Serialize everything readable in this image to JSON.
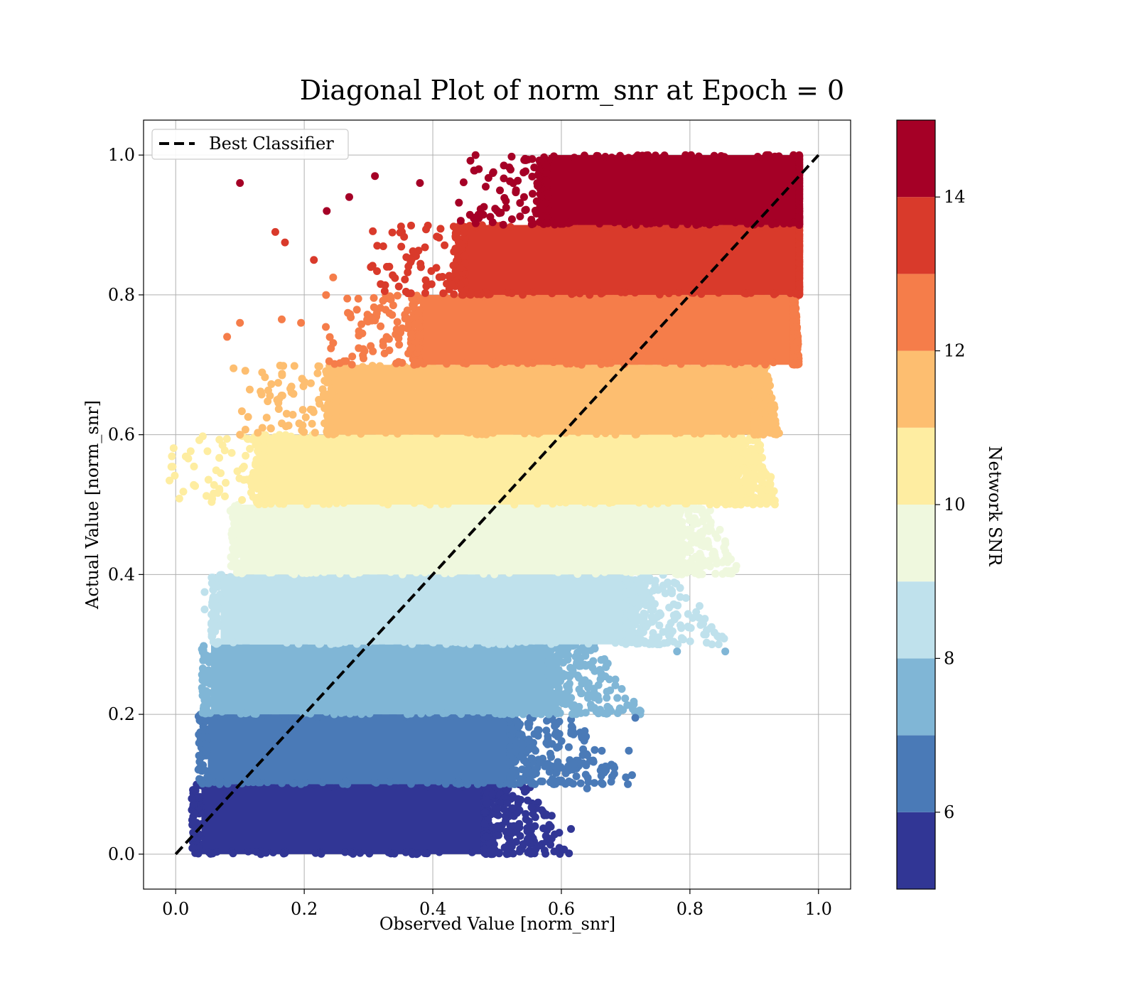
{
  "chart_data": {
    "type": "scatter",
    "title": "Diagonal Plot of norm_snr at Epoch = 0",
    "xlabel": "Observed Value [norm_snr]",
    "ylabel": "Actual Value [norm_snr]",
    "xlim": [
      -0.05,
      1.05
    ],
    "ylim": [
      -0.05,
      1.05
    ],
    "xticks": [
      "0.0",
      "0.2",
      "0.4",
      "0.6",
      "0.8",
      "1.0"
    ],
    "yticks": [
      "0.0",
      "0.2",
      "0.4",
      "0.6",
      "0.8",
      "1.0"
    ],
    "grid": true,
    "legend": {
      "placement": "top-left",
      "entries": [
        "Best Classifier"
      ]
    },
    "reference_line": {
      "name": "Best Classifier",
      "style": "dashed",
      "color": "#000000",
      "x": [
        0.0,
        1.0
      ],
      "y": [
        0.0,
        1.0
      ]
    },
    "colorbar": {
      "label": "Network SNR",
      "range": [
        5,
        15
      ],
      "ticks": [
        "6",
        "8",
        "10",
        "12",
        "14"
      ],
      "bins": [
        {
          "from": 5,
          "to": 6,
          "color": "#313695"
        },
        {
          "from": 6,
          "to": 7,
          "color": "#4a7ab7"
        },
        {
          "from": 7,
          "to": 8,
          "color": "#80b6d6"
        },
        {
          "from": 8,
          "to": 9,
          "color": "#bfe1ec"
        },
        {
          "from": 9,
          "to": 10,
          "color": "#eff8de"
        },
        {
          "from": 10,
          "to": 11,
          "color": "#feeda1"
        },
        {
          "from": 11,
          "to": 12,
          "color": "#fdbe70"
        },
        {
          "from": 12,
          "to": 13,
          "color": "#f57d4a"
        },
        {
          "from": 13,
          "to": 14,
          "color": "#d93a2b"
        },
        {
          "from": 14,
          "to": 15,
          "color": "#a50026"
        }
      ]
    },
    "bands": [
      {
        "y": [
          0.0,
          0.1
        ],
        "x": [
          0.04,
          0.48
        ],
        "tail_x": 0.62,
        "color": "#313695"
      },
      {
        "y": [
          0.1,
          0.2
        ],
        "x": [
          0.05,
          0.52
        ],
        "tail_x": 0.71,
        "color": "#4a7ab7"
      },
      {
        "y": [
          0.2,
          0.3
        ],
        "x": [
          0.055,
          0.58
        ],
        "tail_x": 0.73,
        "color": "#80b6d6"
      },
      {
        "y": [
          0.3,
          0.4
        ],
        "x": [
          0.07,
          0.7
        ],
        "tail_x": 0.86,
        "color": "#bfe1ec"
      },
      {
        "y": [
          0.4,
          0.5
        ],
        "x": [
          0.1,
          0.78
        ],
        "tail_x": 0.88,
        "color": "#eff8de"
      },
      {
        "y": [
          0.5,
          0.6
        ],
        "x": [
          0.14,
          0.87
        ],
        "tail_x": 0.94,
        "color": "#feeda1"
      },
      {
        "y": [
          0.6,
          0.7
        ],
        "x": [
          0.25,
          0.9
        ],
        "tail_x": 0.94,
        "color": "#fdbe70"
      },
      {
        "y": [
          0.7,
          0.8
        ],
        "x": [
          0.38,
          0.96
        ],
        "tail_x": 0.97,
        "color": "#f57d4a"
      },
      {
        "y": [
          0.8,
          0.9
        ],
        "x": [
          0.45,
          0.97
        ],
        "tail_x": 0.97,
        "color": "#d93a2b"
      },
      {
        "y": [
          0.9,
          1.0
        ],
        "x": [
          0.58,
          0.97
        ],
        "tail_x": 0.97,
        "color": "#a50026"
      }
    ],
    "outliers": [
      {
        "x": 0.1,
        "y": 0.96,
        "color": "#a50026"
      },
      {
        "x": 0.235,
        "y": 0.92,
        "color": "#a50026"
      },
      {
        "x": 0.27,
        "y": 0.94,
        "color": "#a50026"
      },
      {
        "x": 0.31,
        "y": 0.97,
        "color": "#a50026"
      },
      {
        "x": 0.38,
        "y": 0.96,
        "color": "#a50026"
      },
      {
        "x": 0.155,
        "y": 0.89,
        "color": "#d93a2b"
      },
      {
        "x": 0.17,
        "y": 0.875,
        "color": "#d93a2b"
      },
      {
        "x": 0.215,
        "y": 0.85,
        "color": "#d93a2b"
      },
      {
        "x": 0.245,
        "y": 0.825,
        "color": "#f57d4a"
      },
      {
        "x": 0.08,
        "y": 0.74,
        "color": "#f57d4a"
      },
      {
        "x": 0.1,
        "y": 0.76,
        "color": "#f57d4a"
      },
      {
        "x": 0.165,
        "y": 0.765,
        "color": "#f57d4a"
      },
      {
        "x": 0.195,
        "y": 0.76,
        "color": "#f57d4a"
      },
      {
        "x": 0.09,
        "y": 0.695,
        "color": "#fdbe70"
      },
      {
        "x": 0.1,
        "y": 0.6,
        "color": "#fdbe70"
      },
      {
        "x": 0.07,
        "y": 0.545,
        "color": "#feeda1"
      },
      {
        "x": 0.068,
        "y": 0.52,
        "color": "#feeda1"
      },
      {
        "x": 0.045,
        "y": 0.375,
        "color": "#bfe1ec"
      },
      {
        "x": 0.045,
        "y": 0.35,
        "color": "#bfe1ec"
      },
      {
        "x": 0.815,
        "y": 0.355,
        "color": "#bfe1ec"
      },
      {
        "x": 0.78,
        "y": 0.29,
        "color": "#80b6d6"
      },
      {
        "x": 0.855,
        "y": 0.29,
        "color": "#80b6d6"
      },
      {
        "x": 0.045,
        "y": 0.22,
        "color": "#80b6d6"
      },
      {
        "x": 0.715,
        "y": 0.195,
        "color": "#4a7ab7"
      },
      {
        "x": 0.705,
        "y": 0.148,
        "color": "#4a7ab7"
      },
      {
        "x": 0.71,
        "y": 0.113,
        "color": "#4a7ab7"
      },
      {
        "x": 0.65,
        "y": 0.132,
        "color": "#4a7ab7"
      },
      {
        "x": 0.64,
        "y": 0.094,
        "color": "#4a7ab7"
      },
      {
        "x": 0.615,
        "y": 0.036,
        "color": "#313695"
      },
      {
        "x": 0.565,
        "y": 0.012,
        "color": "#313695"
      },
      {
        "x": 0.585,
        "y": 0.055,
        "color": "#313695"
      }
    ]
  }
}
